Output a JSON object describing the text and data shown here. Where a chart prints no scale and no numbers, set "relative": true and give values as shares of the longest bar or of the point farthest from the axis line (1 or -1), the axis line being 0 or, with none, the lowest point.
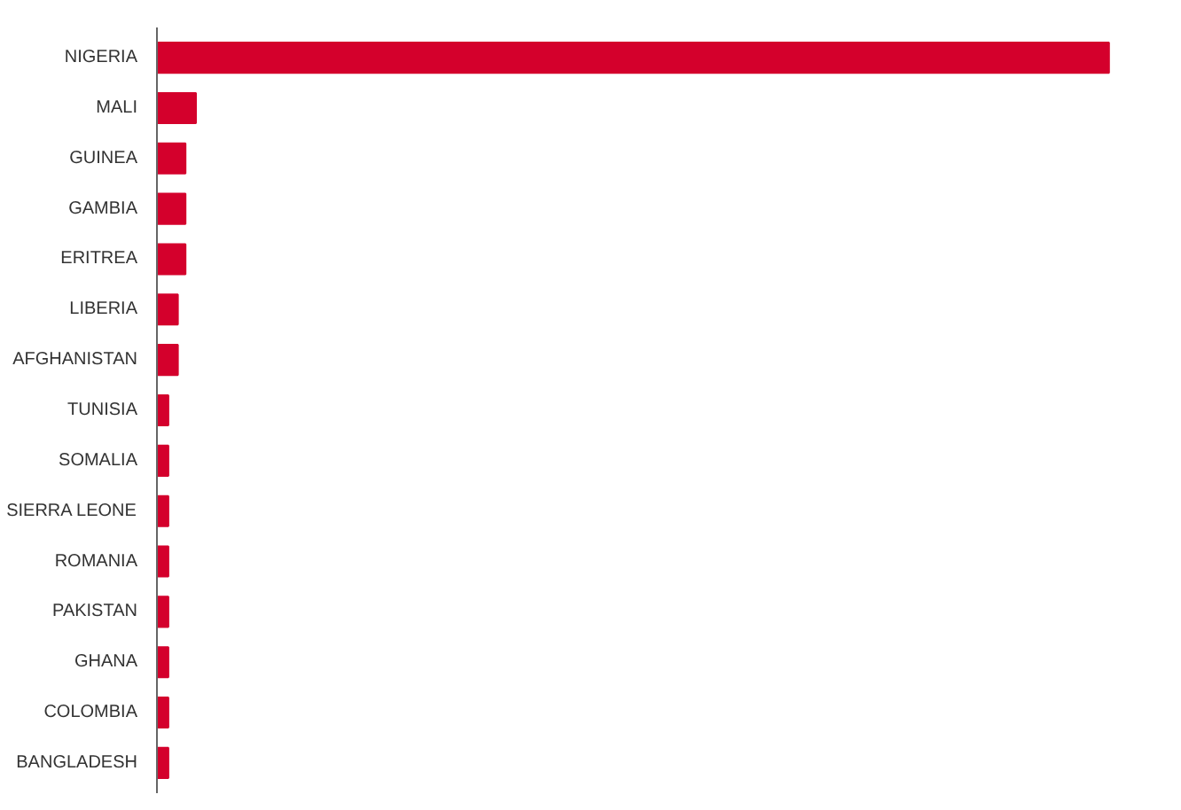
{
  "chart_data": {
    "type": "bar",
    "orientation": "horizontal",
    "relative": true,
    "color": "#d4002c",
    "categories": [
      "NIGERIA",
      "MALI",
      "GUINEA",
      "GAMBIA",
      "ERITREA",
      "LIBERIA",
      "AFGHANISTAN",
      "TUNISIA",
      "SOMALIA",
      "SIERRA LEONE",
      "ROMANIA",
      "PAKISTAN",
      "GHANA",
      "COLOMBIA",
      "BANGLADESH"
    ],
    "values": [
      1,
      0.041,
      0.03,
      0.03,
      0.03,
      0.022,
      0.022,
      0.012,
      0.012,
      0.012,
      0.012,
      0.012,
      0.012,
      0.012,
      0.012
    ]
  }
}
